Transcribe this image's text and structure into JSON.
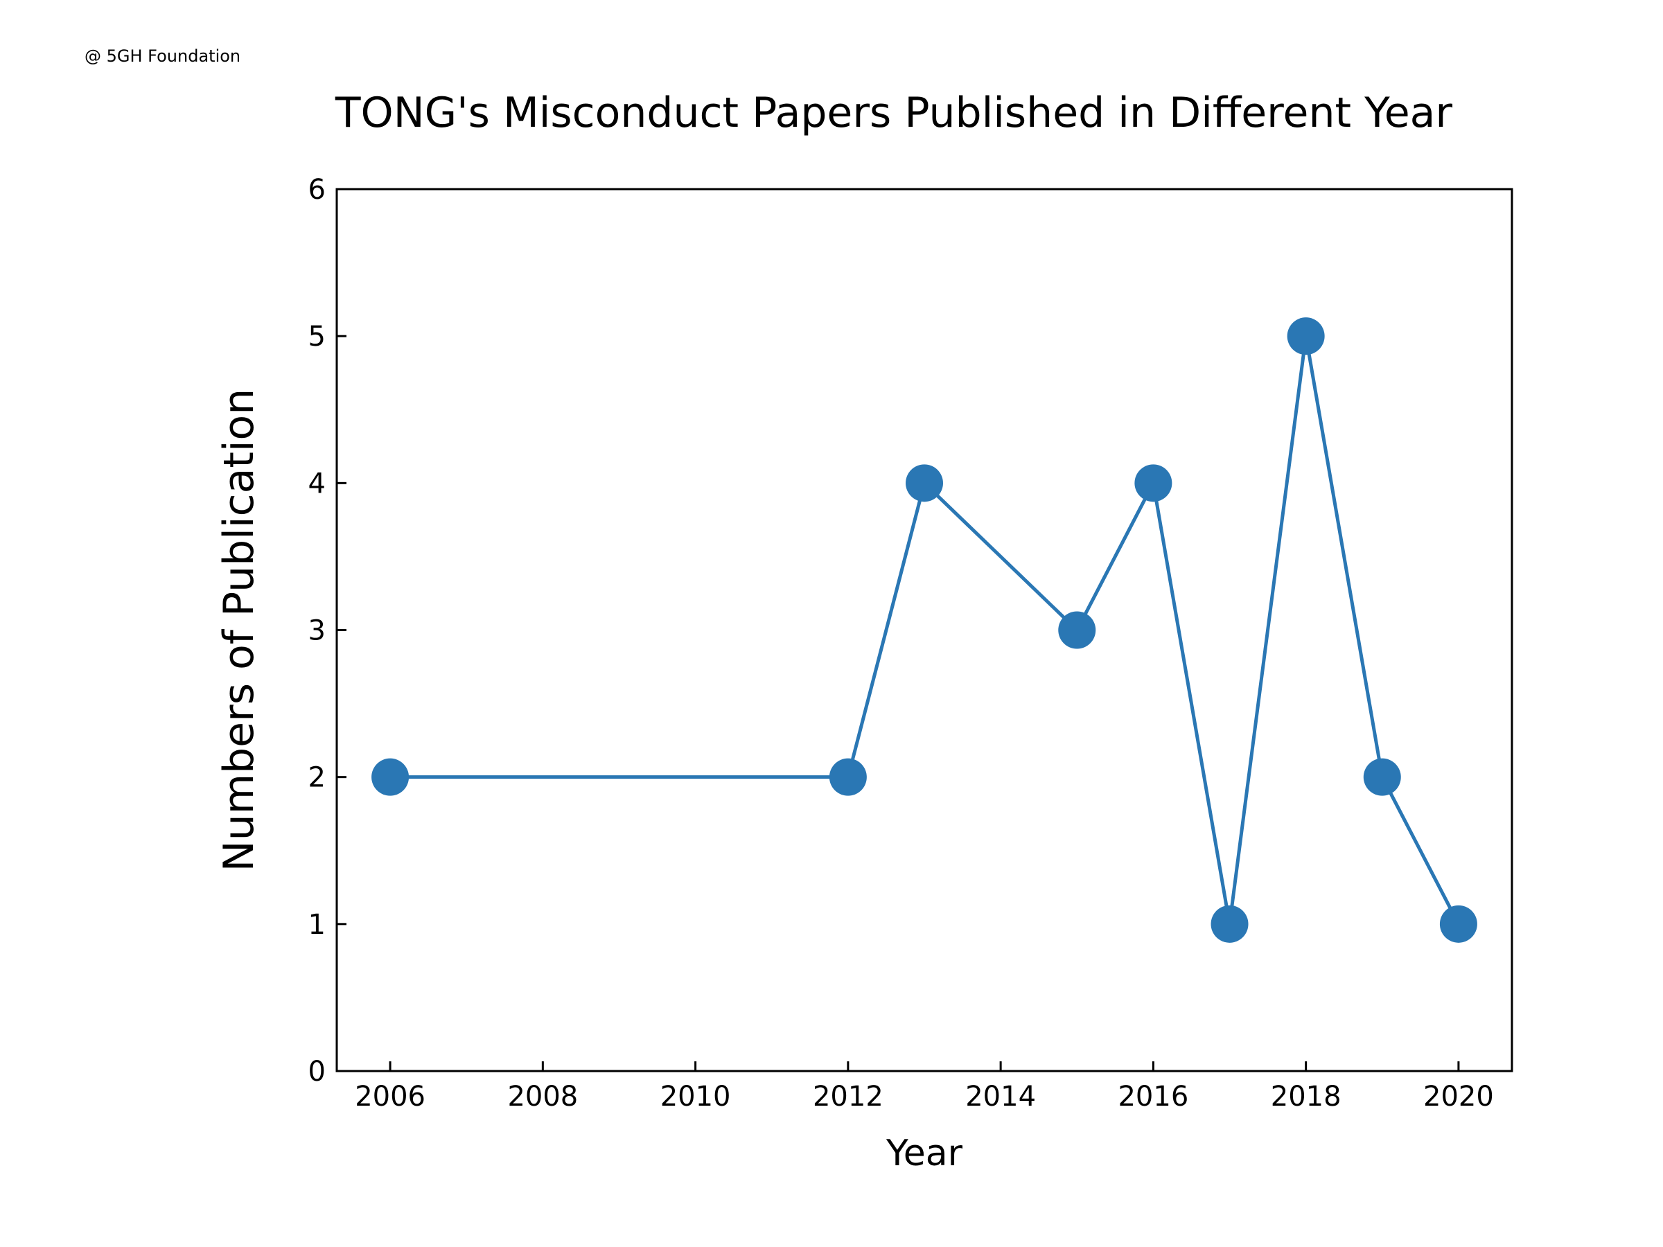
{
  "watermark": "@ 5GH Foundation",
  "chart_data": {
    "type": "line",
    "title": "TONG's Misconduct Papers Published in Different Year",
    "xlabel": "Year",
    "ylabel": "Numbers of Publication",
    "x": [
      2006,
      2012,
      2013,
      2015,
      2016,
      2017,
      2018,
      2019,
      2020
    ],
    "series": [
      {
        "values": [
          2,
          2,
          4,
          3,
          4,
          1,
          5,
          2,
          1
        ]
      }
    ],
    "xlim": [
      2005.3,
      2020.7
    ],
    "ylim": [
      0,
      6
    ],
    "xticks": [
      2006,
      2008,
      2010,
      2012,
      2014,
      2016,
      2018,
      2020
    ],
    "yticks": [
      0,
      1,
      2,
      3,
      4,
      5,
      6
    ],
    "grid": false,
    "line_color": "#2a77b4",
    "marker": "circle"
  }
}
